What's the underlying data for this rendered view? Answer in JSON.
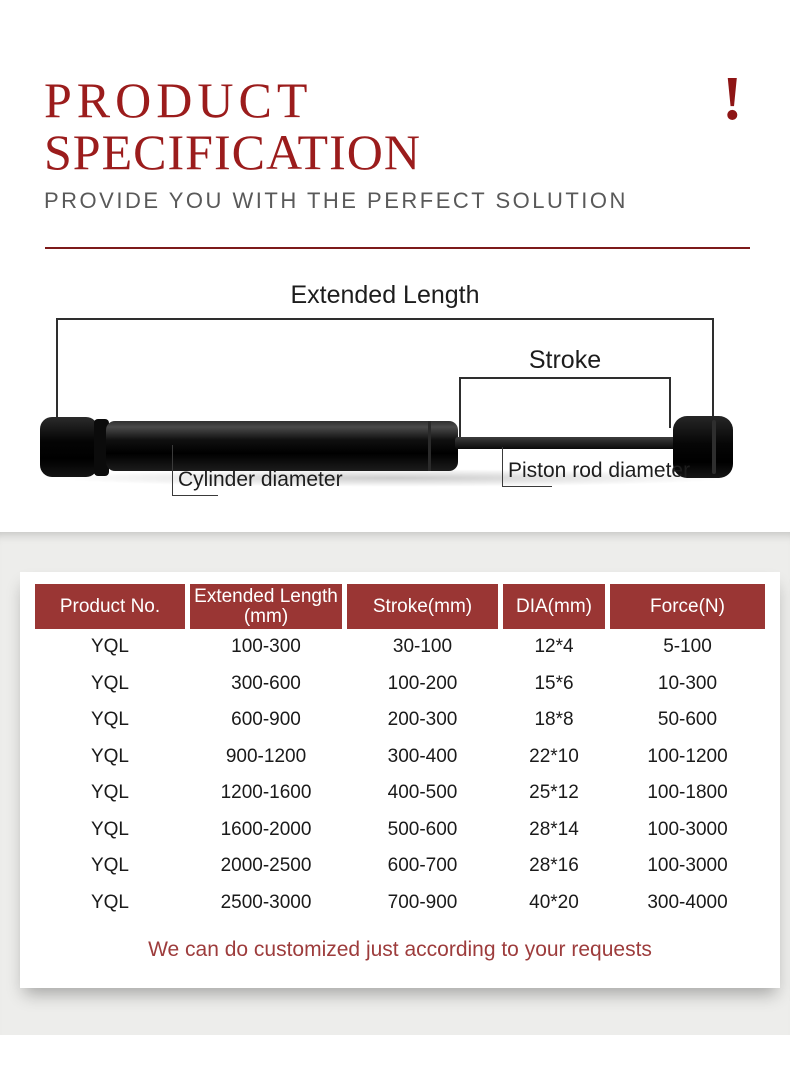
{
  "header": {
    "title_line1": "PRODUCT",
    "title_line2": "SPECIFICATION",
    "subtitle": "PROVIDE YOU WITH THE PERFECT SOLUTION"
  },
  "icons": {
    "exclamation": "!"
  },
  "colors": {
    "title_red": "#9b1c1c",
    "separator_red": "#7d1a1a",
    "table_header_bg": "#9a3634",
    "table_header_text": "#ffffff",
    "note_red": "#9d3c3c",
    "background_gray": "#ededeb"
  },
  "diagram": {
    "extended_length_label": "Extended Length",
    "stroke_label": "Stroke",
    "cylinder_diameter_label": "Cylinder diameter",
    "piston_rod_diameter_label": "Piston rod diameter"
  },
  "table": {
    "headers": [
      {
        "label": "Product No.",
        "sub": ""
      },
      {
        "label": "Extended Length",
        "sub": "(mm)"
      },
      {
        "label": "Stroke(mm)",
        "sub": ""
      },
      {
        "label": "DIA(mm)",
        "sub": ""
      },
      {
        "label": "Force(N)",
        "sub": ""
      }
    ],
    "rows": [
      [
        "YQL",
        "100-300",
        "30-100",
        "12*4",
        "5-100"
      ],
      [
        "YQL",
        "300-600",
        "100-200",
        "15*6",
        "10-300"
      ],
      [
        "YQL",
        "600-900",
        "200-300",
        "18*8",
        "50-600"
      ],
      [
        "YQL",
        "900-1200",
        "300-400",
        "22*10",
        "100-1200"
      ],
      [
        "YQL",
        "1200-1600",
        "400-500",
        "25*12",
        "100-1800"
      ],
      [
        "YQL",
        "1600-2000",
        "500-600",
        "28*14",
        "100-3000"
      ],
      [
        "YQL",
        "2000-2500",
        "600-700",
        "28*16",
        "100-3000"
      ],
      [
        "YQL",
        "2500-3000",
        "700-900",
        "40*20",
        "300-4000"
      ]
    ]
  },
  "footer": {
    "note": "We can do customized just according to your requests"
  }
}
